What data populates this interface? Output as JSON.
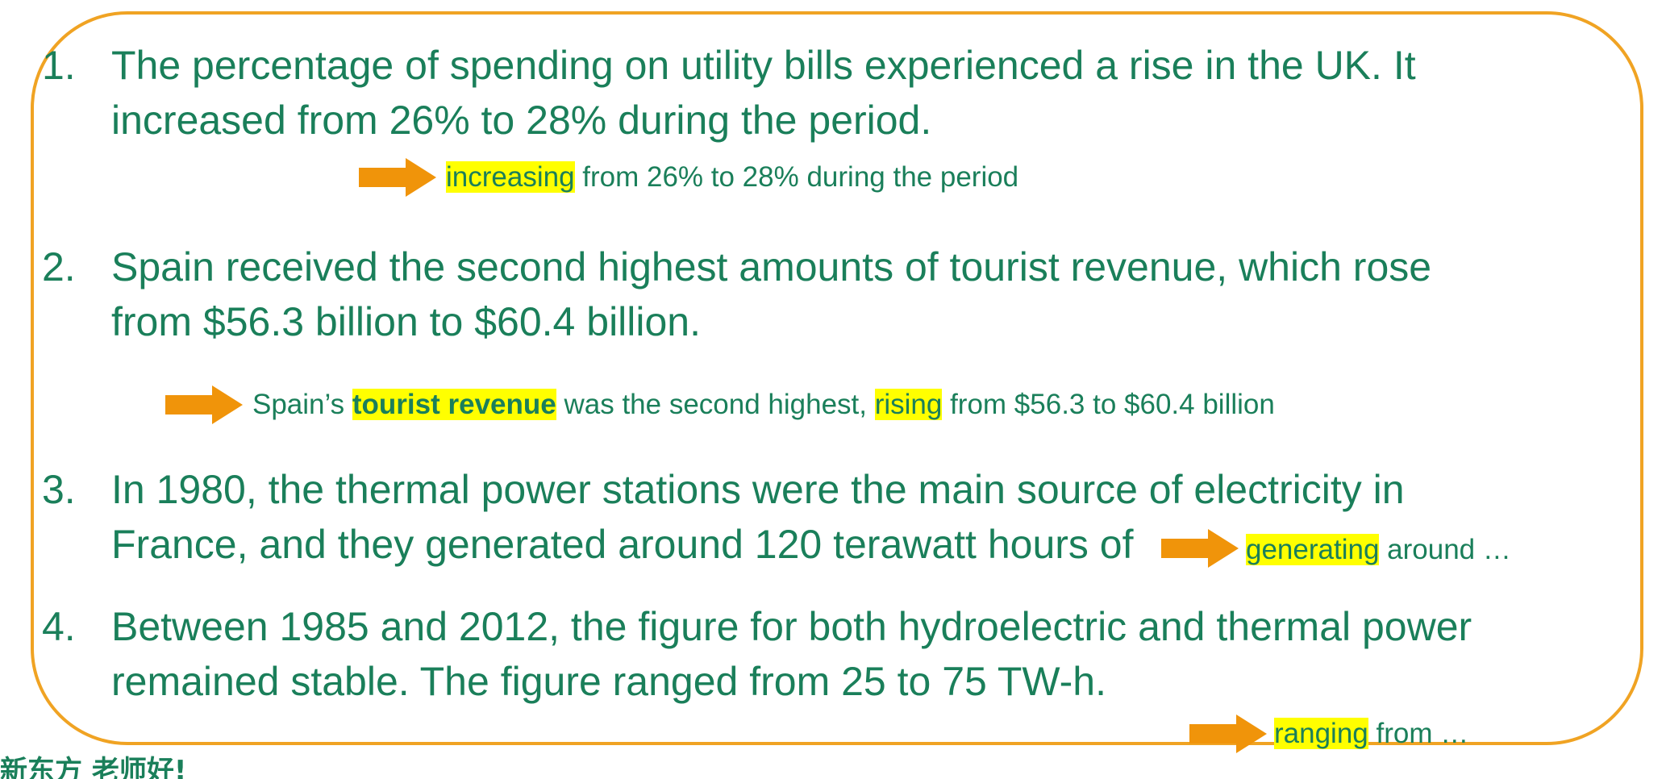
{
  "sentences": [
    {
      "number": "1.",
      "line1": "The percentage of spending on utility bills experienced a rise in the UK. It",
      "line2": "increased from 26% to 28% during the period."
    },
    {
      "number": "2.",
      "line1": "Spain received the second highest amounts of tourist revenue, which rose",
      "line2": "from $56.3 billion to $60.4 billion."
    },
    {
      "number": "3.",
      "line1": "In 1980, the thermal power stations were the main source of electricity in",
      "line2": "France, and they generated around 120 terawatt hours of"
    },
    {
      "number": "4.",
      "line1": "Between 1985 and 2012, the figure for both hydroelectric and thermal power",
      "line2": "remained stable. The figure ranged from 25 to 75 TW-h."
    }
  ],
  "rewrites": {
    "r1": {
      "hl": "increasing",
      "rest": " from 26% to 28% during the period"
    },
    "r2": {
      "pre": "Spain’s ",
      "bold_hl": "tourist revenue",
      "mid": " was the second highest, ",
      "hl": "rising",
      "rest": " from $56.3 to $60.4 billion"
    },
    "r3": {
      "hl": "generating",
      "rest": " around …"
    },
    "r4": {
      "hl": "ranging",
      "rest": " from …"
    }
  },
  "footer": {
    "logo_text": "新东方 老师好!"
  },
  "colors": {
    "text": "#1a7f5a",
    "frame": "#f0a323",
    "arrow": "#f0940a",
    "highlight": "#ffff00"
  },
  "icons": {
    "arrow": "right-arrow-icon"
  }
}
